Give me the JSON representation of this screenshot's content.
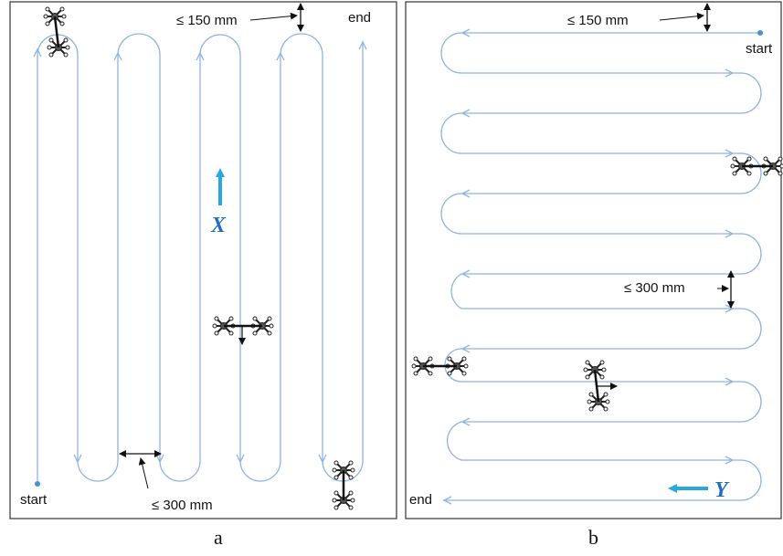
{
  "colors": {
    "path": "#8fb4e0",
    "axis_arrow": "#29a8df",
    "axis_text": "#1f6fbf",
    "frame": "#333333",
    "text": "#111111"
  },
  "icons": [
    "quadcopter-icon",
    "arrowhead-icon"
  ],
  "panel_a": {
    "caption": "a",
    "start_label": "start",
    "end_label": "end",
    "top_spacing_label": "≤ 150 mm",
    "bottom_spacing_label": "≤ 300 mm",
    "axis_label": "X"
  },
  "panel_b": {
    "caption": "b",
    "start_label": "start",
    "end_label": "end",
    "top_spacing_label": "≤ 150 mm",
    "mid_spacing_label": "≤ 300 mm",
    "axis_label": "Y"
  }
}
